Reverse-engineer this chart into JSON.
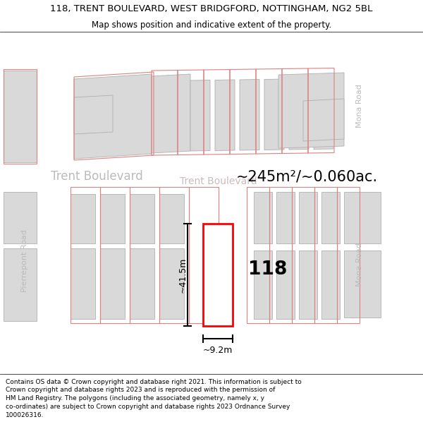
{
  "title_line1": "118, TRENT BOULEVARD, WEST BRIDGFORD, NOTTINGHAM, NG2 5BL",
  "title_line2": "Map shows position and indicative extent of the property.",
  "footer_text": "Contains OS data © Crown copyright and database right 2021. This information is subject to\nCrown copyright and database rights 2023 and is reproduced with the permission of\nHM Land Registry. The polygons (including the associated geometry, namely x, y\nco-ordinates) are subject to Crown copyright and database rights 2023 Ordnance Survey\n100026316.",
  "area_label": "~245m²/~0.060ac.",
  "number_label": "118",
  "dim_width_label": "~9.2m",
  "dim_height_label": "~41.5m",
  "street_label_trent_left": "Trent Boulevard",
  "street_label_trent_center": "Trent Boulevard",
  "street_label_mona_top": "Mona Road",
  "street_label_mona_bot": "Mona Road",
  "street_label_pierrepont": "Pierrepont Road",
  "map_bg": "#f2f2f2",
  "road_color": "#ffffff",
  "building_fill": "#d9d9d9",
  "building_stroke": "#b0b0b0",
  "plot_outline_color": "#e08080",
  "plot_fill": "#ffffff",
  "plot_stroke": "#ff0000",
  "dim_color": "#000000",
  "street_text_color": "#bbbbbb",
  "fig_width": 6.0,
  "fig_height": 6.25,
  "dpi": 100,
  "title_fontsize": 9.5,
  "subtitle_fontsize": 8.5,
  "footer_fontsize": 6.5
}
